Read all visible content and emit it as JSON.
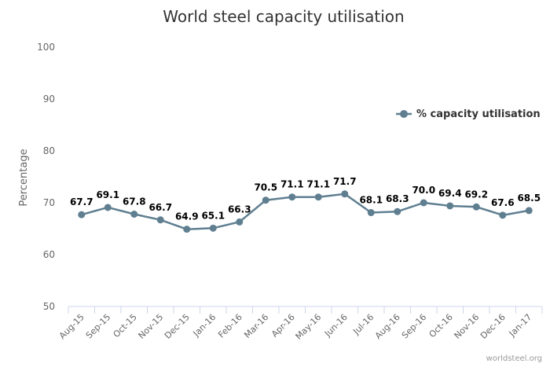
{
  "chart_data": {
    "type": "line",
    "title": "World steel capacity utilisation",
    "ylabel": "Percentage",
    "xlabel": "",
    "ylim": [
      50,
      100
    ],
    "yticks": [
      50,
      60,
      70,
      80,
      90,
      100
    ],
    "grid": false,
    "legend_position": "right",
    "categories": [
      "Aug-15",
      "Sep-15",
      "Oct-15",
      "Nov-15",
      "Dec-15",
      "Jan-16",
      "Feb-16",
      "Mar-16",
      "Apr-16",
      "May-16",
      "Jun-16",
      "Jul-16",
      "Aug-16",
      "Sep-16",
      "Oct-16",
      "Nov-16",
      "Dec-16",
      "Jan-17"
    ],
    "series": [
      {
        "name": "% capacity utilisation",
        "color": "#5f7f91",
        "values": [
          67.7,
          69.1,
          67.8,
          66.7,
          64.9,
          65.1,
          66.3,
          70.5,
          71.1,
          71.1,
          71.7,
          68.1,
          68.3,
          70.0,
          69.4,
          69.2,
          67.6,
          68.5
        ],
        "labels": [
          "67.7",
          "69.1",
          "67.8",
          "66.7",
          "64.9",
          "65.1",
          "66.3",
          "70.5",
          "71.1",
          "71.1",
          "71.7",
          "68.1",
          "68.3",
          "70.0",
          "69.4",
          "69.2",
          "67.6",
          "68.5"
        ]
      }
    ],
    "credit": "worldsteel.org"
  }
}
